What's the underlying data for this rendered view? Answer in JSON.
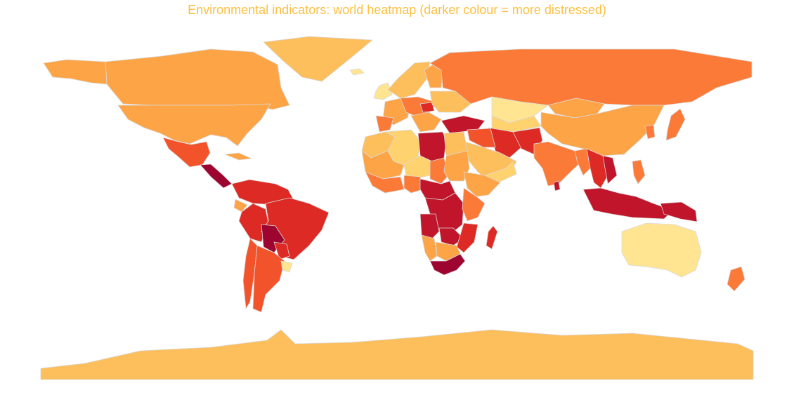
{
  "title": "Environmental indicators: world heatmap (darker colour = more distressed)",
  "title_color": "#fdbf40",
  "map": {
    "type": "choropleth",
    "projection": "equirectangular",
    "scale_name": "YlOrRd",
    "scale_meaning": "darker colour = more distressed",
    "colors": {
      "level_1": "#ffe591",
      "level_2": "#fed26e",
      "level_3": "#fdbe5c",
      "level_4": "#fda446",
      "level_5": "#fb7a38",
      "level_6": "#f2532b",
      "level_7": "#de2a24",
      "level_8": "#c0152a",
      "level_9": "#9d0530",
      "border": "#d9d9d9"
    },
    "regions": [
      {
        "name": "Canada",
        "level": 4
      },
      {
        "name": "Alaska",
        "level": 4
      },
      {
        "name": "United States",
        "level": 4
      },
      {
        "name": "Greenland",
        "level": 3
      },
      {
        "name": "Mexico",
        "level": 6
      },
      {
        "name": "Central America",
        "level": 9
      },
      {
        "name": "Cuba",
        "level": 4
      },
      {
        "name": "Colombia / Venezuela",
        "level": 7
      },
      {
        "name": "Ecuador",
        "level": 4
      },
      {
        "name": "Peru",
        "level": 7
      },
      {
        "name": "Brazil",
        "level": 7
      },
      {
        "name": "Bolivia",
        "level": 9
      },
      {
        "name": "Paraguay",
        "level": 7
      },
      {
        "name": "Chile",
        "level": 6
      },
      {
        "name": "Argentina",
        "level": 6
      },
      {
        "name": "Uruguay",
        "level": 1
      },
      {
        "name": "Iceland",
        "level": 1
      },
      {
        "name": "United Kingdom / Ireland",
        "level": 1
      },
      {
        "name": "Scandinavia",
        "level": 3
      },
      {
        "name": "Finland",
        "level": 4
      },
      {
        "name": "Western Europe",
        "level": 4
      },
      {
        "name": "Iberia",
        "level": 5
      },
      {
        "name": "Central Europe",
        "level": 5
      },
      {
        "name": "Poland",
        "level": 7
      },
      {
        "name": "Balkans",
        "level": 4
      },
      {
        "name": "Belarus / Ukraine",
        "level": 3
      },
      {
        "name": "Russia",
        "level": 5
      },
      {
        "name": "Kazakhstan",
        "level": 1
      },
      {
        "name": "Central Asia",
        "level": 2
      },
      {
        "name": "Mongolia",
        "level": 4
      },
      {
        "name": "China",
        "level": 4
      },
      {
        "name": "Korea",
        "level": 5
      },
      {
        "name": "Japan",
        "level": 5
      },
      {
        "name": "Turkey",
        "level": 8
      },
      {
        "name": "Iran",
        "level": 7
      },
      {
        "name": "Afghanistan / Pakistan",
        "level": 7
      },
      {
        "name": "Iraq / Syria",
        "level": 6
      },
      {
        "name": "Arabian Peninsula",
        "level": 3
      },
      {
        "name": "Yemen / Oman",
        "level": 2
      },
      {
        "name": "India",
        "level": 5
      },
      {
        "name": "Myanmar",
        "level": 5
      },
      {
        "name": "Thailand / Indochina",
        "level": 7
      },
      {
        "name": "Vietnam",
        "level": 8
      },
      {
        "name": "Sri Lanka",
        "level": 8
      },
      {
        "name": "Philippines",
        "level": 5
      },
      {
        "name": "Indonesia / Malaysia",
        "level": 8
      },
      {
        "name": "New Guinea",
        "level": 8
      },
      {
        "name": "Australia",
        "level": 1
      },
      {
        "name": "New Zealand",
        "level": 5
      },
      {
        "name": "Morocco / Western Sahara",
        "level": 3
      },
      {
        "name": "Algeria",
        "level": 2
      },
      {
        "name": "Libya",
        "level": 8
      },
      {
        "name": "Egypt",
        "level": 3
      },
      {
        "name": "Mauritania / Mali",
        "level": 4
      },
      {
        "name": "Niger",
        "level": 2
      },
      {
        "name": "Chad",
        "level": 5
      },
      {
        "name": "Sudan",
        "level": 4
      },
      {
        "name": "Ethiopia / Horn",
        "level": 4
      },
      {
        "name": "West Africa coast",
        "level": 5
      },
      {
        "name": "Nigeria",
        "level": 5
      },
      {
        "name": "Cameroon / Central Africa",
        "level": 8
      },
      {
        "name": "DR Congo",
        "level": 8
      },
      {
        "name": "East Africa",
        "level": 5
      },
      {
        "name": "Angola",
        "level": 8
      },
      {
        "name": "Zambia",
        "level": 8
      },
      {
        "name": "Mozambique",
        "level": 7
      },
      {
        "name": "Namibia",
        "level": 4
      },
      {
        "name": "Botswana / Zimbabwe",
        "level": 4
      },
      {
        "name": "South Africa",
        "level": 9
      },
      {
        "name": "Madagascar",
        "level": 7
      },
      {
        "name": "Antarctica",
        "level": 3
      }
    ]
  }
}
